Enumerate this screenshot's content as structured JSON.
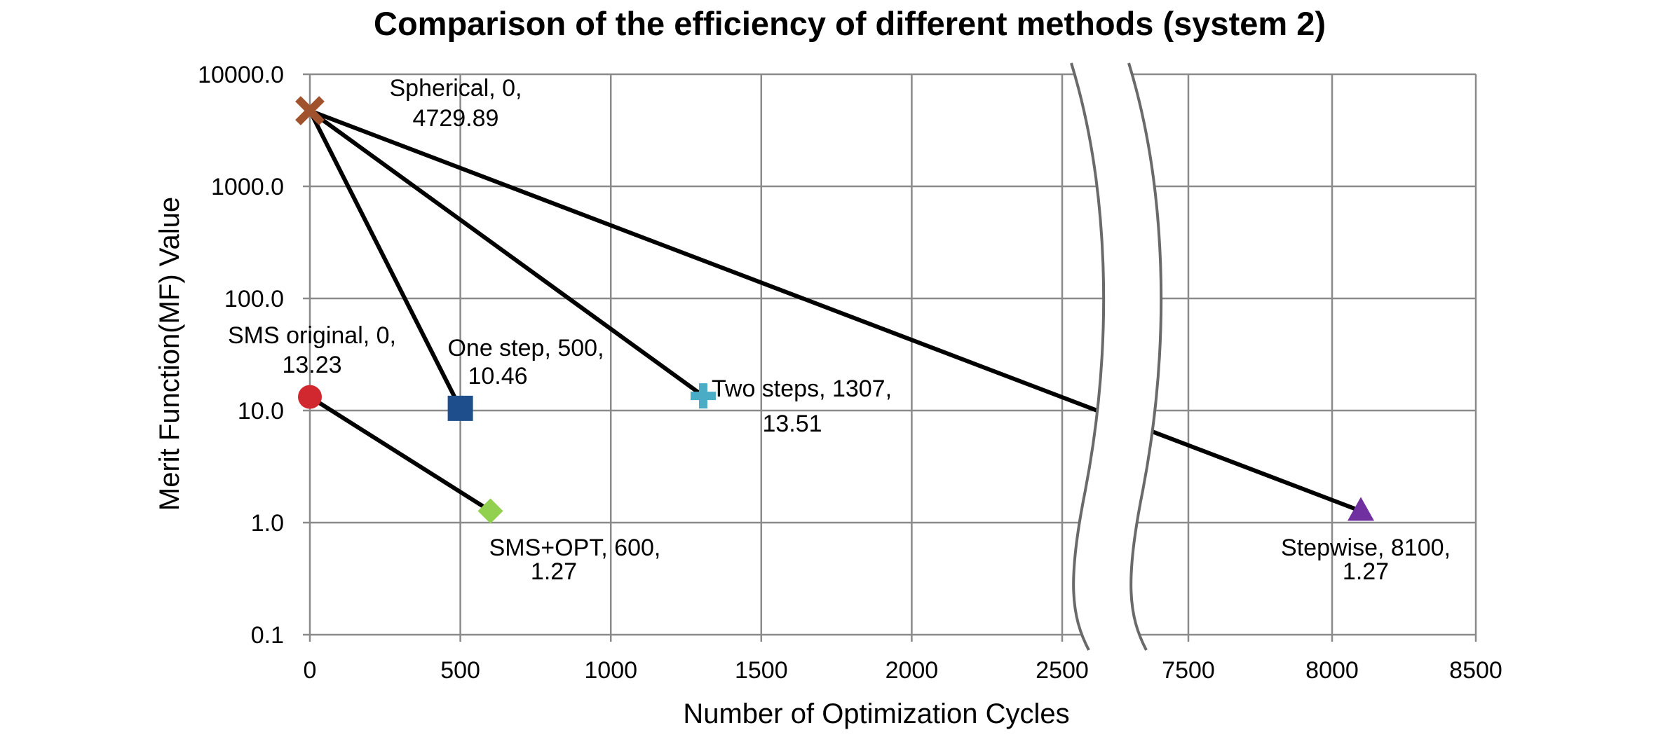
{
  "chart_data": {
    "type": "scatter",
    "title": "Comparison of the efficiency of different methods (system 2)",
    "xlabel": "Number of Optimization Cycles",
    "ylabel": "Merit Function(MF) Value",
    "yscale": "log",
    "ylim": [
      0.1,
      10000
    ],
    "xlim": [
      0,
      8500
    ],
    "x_axis_break": [
      2625,
      7325
    ],
    "grid": true,
    "x_tick_labels": [
      "0",
      "500",
      "1000",
      "1500",
      "2000",
      "2500",
      "7500",
      "8000",
      "8500"
    ],
    "y_tick_labels": [
      "0.1",
      "1.0",
      "10.0",
      "100.0",
      "1000.0",
      "10000.0"
    ],
    "points": [
      {
        "id": "spherical",
        "name": "Spherical",
        "x": 0,
        "y": 4729.89,
        "label_line1": "Spherical, 0,",
        "label_line2": "4729.89",
        "marker": "x",
        "color": "#A0522D"
      },
      {
        "id": "sms-original",
        "name": "SMS original",
        "x": 0,
        "y": 13.23,
        "label_line1": "SMS original, 0,",
        "label_line2": "13.23",
        "marker": "circle",
        "color": "#D0282E"
      },
      {
        "id": "one-step",
        "name": "One step",
        "x": 500,
        "y": 10.46,
        "label_line1": "One step, 500,",
        "label_line2": "10.46",
        "marker": "square",
        "color": "#1F4E8C"
      },
      {
        "id": "two-steps",
        "name": "Two steps",
        "x": 1307,
        "y": 13.51,
        "label_line1": "Two steps, 1307,",
        "label_line2": "13.51",
        "marker": "plus",
        "color": "#4BACC6"
      },
      {
        "id": "sms-opt",
        "name": "SMS+OPT",
        "x": 600,
        "y": 1.27,
        "label_line1": "SMS+OPT, 600,",
        "label_line2": "1.27",
        "marker": "diamond",
        "color": "#92D050"
      },
      {
        "id": "stepwise",
        "name": "Stepwise",
        "x": 8100,
        "y": 1.27,
        "label_line1": "Stepwise, 8100,",
        "label_line2": "1.27",
        "marker": "triangle",
        "color": "#7030A0"
      }
    ],
    "connections": [
      [
        "spherical",
        "one-step"
      ],
      [
        "spherical",
        "two-steps"
      ],
      [
        "spherical",
        "stepwise"
      ],
      [
        "sms-original",
        "sms-opt"
      ]
    ]
  }
}
